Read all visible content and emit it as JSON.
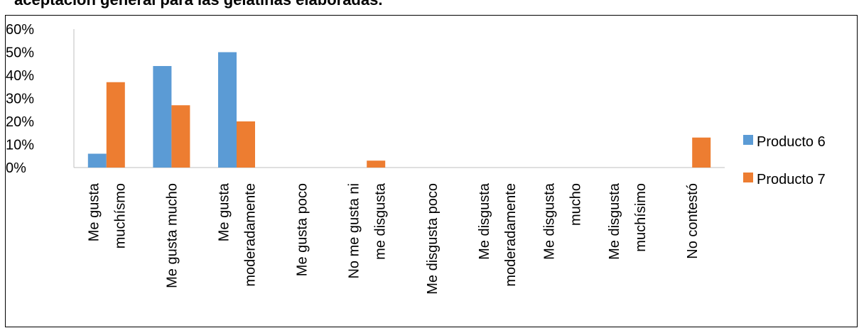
{
  "heading": "aceptación general para las gelatinas elaboradas.",
  "chart_data": {
    "type": "bar",
    "title": "",
    "xlabel": "",
    "ylabel": "",
    "ylim": [
      0,
      60
    ],
    "yticks": [
      "0%",
      "10%",
      "20%",
      "30%",
      "40%",
      "50%",
      "60%"
    ],
    "grid": false,
    "legend_position": "right",
    "categories": [
      [
        "Me gusta",
        "muchísmo"
      ],
      [
        "Me gusta mucho"
      ],
      [
        "Me gusta",
        "moderadamente"
      ],
      [
        "Me gusta poco"
      ],
      [
        "No me gusta ni",
        "me disgusta"
      ],
      [
        "Me disgusta poco"
      ],
      [
        "Me disgusta",
        "moderadamente"
      ],
      [
        "Me disgusta",
        "mucho"
      ],
      [
        "Me disgusta",
        "muchísimo"
      ],
      [
        "No contestó"
      ]
    ],
    "series": [
      {
        "name": "Producto 6",
        "color": "#5B9BD5",
        "values": [
          6,
          44,
          50,
          0,
          0,
          0,
          0,
          0,
          0,
          0
        ]
      },
      {
        "name": "Producto 7",
        "color": "#ED7D31",
        "values": [
          37,
          27,
          20,
          0,
          3,
          0,
          0,
          0,
          0,
          13
        ]
      }
    ]
  }
}
